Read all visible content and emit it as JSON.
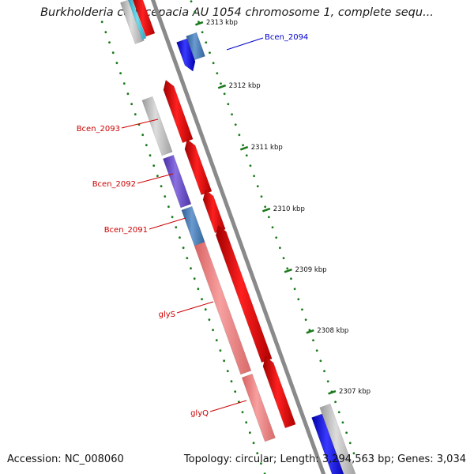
{
  "title": "Burkholderia cenocepacia AU 1054 chromosome 1, complete sequ...",
  "footer": {
    "accession": "Accession: NC_008060",
    "summary": "Topology: circular; Length: 3,294,563 bp; Genes: 3,034"
  },
  "colors": {
    "backbone": "#8a8a8a",
    "tick": "#1a7a1a",
    "forward_gene": "#ee0000",
    "forward_light": "#f08080",
    "reverse_gray": "#b8b8b8",
    "reverse_purple": "#6a4ccc",
    "reverse_steelblue": "#4a80b8",
    "reverse_blue": "#1010ee",
    "label_red": "#cc0000",
    "label_blue": "#0000cc"
  },
  "ruler": {
    "ticks": [
      "2313 kbp",
      "2312 kbp",
      "2311 kbp",
      "2310 kbp",
      "2309 kbp",
      "2308 kbp",
      "2307 kbp"
    ]
  },
  "genes": [
    {
      "label": "Bcen_2094",
      "label_color": "blue"
    },
    {
      "label": "Bcen_2093",
      "label_color": "red"
    },
    {
      "label": "Bcen_2092",
      "label_color": "red"
    },
    {
      "label": "Bcen_2091",
      "label_color": "red"
    },
    {
      "label": "glyS",
      "label_color": "red"
    },
    {
      "label": "glyQ",
      "label_color": "red"
    }
  ]
}
